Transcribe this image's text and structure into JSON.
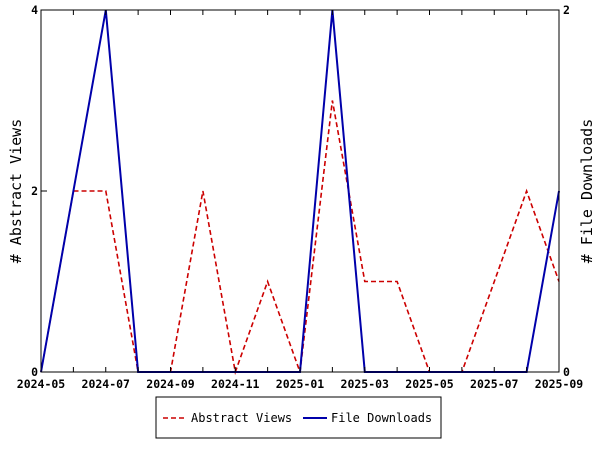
{
  "chart_data": {
    "type": "line",
    "x": [
      "2024-05",
      "2024-06",
      "2024-07",
      "2024-08",
      "2024-09",
      "2024-10",
      "2024-11",
      "2024-12",
      "2025-01",
      "2025-02",
      "2025-03",
      "2025-04",
      "2025-05",
      "2025-06",
      "2025-07",
      "2025-08",
      "2025-09"
    ],
    "x_tick_labels": [
      "2024-05",
      "2024-07",
      "2024-09",
      "2024-11",
      "2025-01",
      "2025-03",
      "2025-05",
      "2025-07",
      "2025-09"
    ],
    "series": [
      {
        "name": "Abstract Views",
        "axis": "left",
        "color": "#cc0000",
        "style": "dashed",
        "values": [
          0,
          2,
          2,
          0,
          0,
          2,
          0,
          1,
          0,
          3,
          1,
          1,
          0,
          0,
          1,
          2,
          1
        ]
      },
      {
        "name": "File Downloads",
        "axis": "right",
        "color": "#0000aa",
        "style": "solid",
        "values": [
          0,
          1,
          2,
          0,
          0,
          0,
          0,
          0,
          0,
          2,
          0,
          0,
          0,
          0,
          0,
          0,
          1
        ]
      }
    ],
    "ylabel": "# Abstract Views",
    "ylabel_right": "# File Downloads",
    "ylim": [
      0,
      4
    ],
    "ylim_right": [
      0,
      2
    ],
    "yticks_left": [
      "0",
      "2",
      "4"
    ],
    "yticks_right": [
      "0",
      "2"
    ],
    "grid": false,
    "legend_position": "bottom-center"
  }
}
